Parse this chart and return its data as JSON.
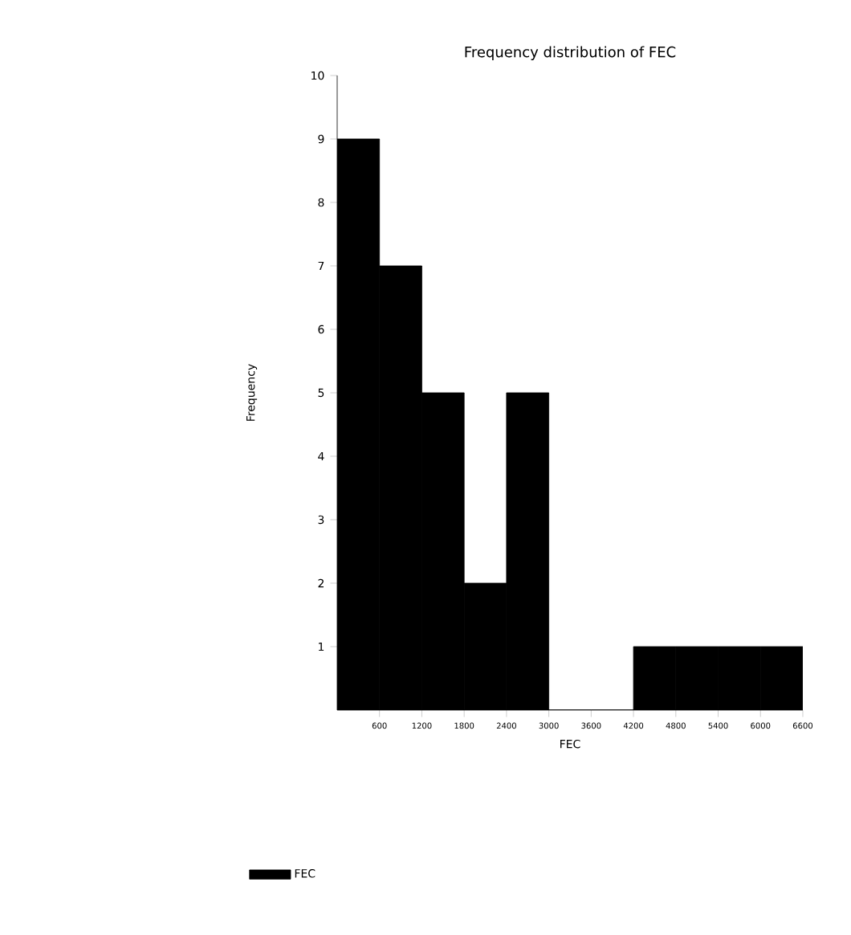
{
  "chart_data": {
    "type": "histogram",
    "title": "Frequency distribution of FEC",
    "xlabel": "FEC",
    "ylabel": "Frequency",
    "bins": [
      0,
      600,
      1200,
      1800,
      2400,
      3000,
      3600,
      4200,
      4800,
      5400,
      6000,
      6600
    ],
    "series": [
      {
        "name": "FEC",
        "color": "#000000",
        "values": [
          9,
          7,
          5,
          2,
          5,
          0,
          0,
          1,
          1,
          1,
          1
        ]
      }
    ],
    "xlim": [
      0,
      6600
    ],
    "xticks": [
      600,
      1200,
      1800,
      2400,
      3000,
      3600,
      4200,
      4800,
      5400,
      6000,
      6600
    ],
    "ylim": [
      0,
      10
    ],
    "yticks": [
      1,
      2,
      3,
      4,
      5,
      6,
      7,
      8,
      9,
      10
    ],
    "legend": "bottom left",
    "grid": false
  }
}
